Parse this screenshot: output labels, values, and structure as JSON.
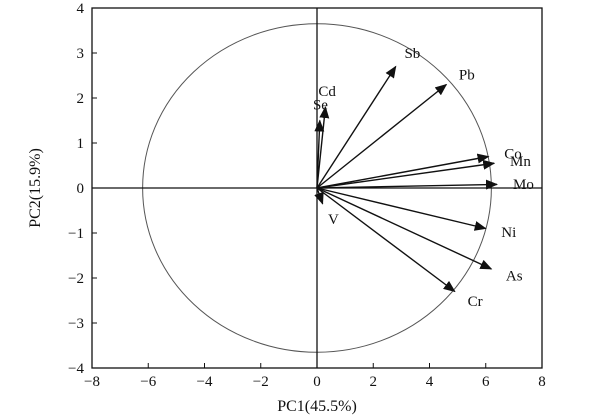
{
  "chart_data": {
    "type": "scatter",
    "subtype": "pca-biplot",
    "title": "",
    "xlabel": "PC1(45.5%)",
    "ylabel": "PC2(15.9%)",
    "xlim": [
      -8,
      8
    ],
    "ylim": [
      -4,
      4
    ],
    "xticks": [
      -8,
      -6,
      -4,
      -2,
      0,
      2,
      4,
      6,
      8
    ],
    "yticks": [
      -4,
      -3,
      -2,
      -1,
      0,
      1,
      2,
      3,
      4
    ],
    "xtick_labels": [
      "−8",
      "−6",
      "−4",
      "−2",
      "0",
      "2",
      "4",
      "6",
      "8"
    ],
    "ytick_labels": [
      "−4",
      "−3",
      "−2",
      "−1",
      "0",
      "1",
      "2",
      "3",
      "4"
    ],
    "grid": false,
    "circle": {
      "center": [
        0,
        0
      ],
      "radius_x": 6.2,
      "radius_y": 3.65
    },
    "vectors": [
      {
        "label": "Se",
        "x": 0.1,
        "y": 1.5
      },
      {
        "label": "Cd",
        "x": 0.3,
        "y": 1.8
      },
      {
        "label": "Sb",
        "x": 2.8,
        "y": 2.7
      },
      {
        "label": "Pb",
        "x": 4.6,
        "y": 2.3
      },
      {
        "label": "Co",
        "x": 6.1,
        "y": 0.7
      },
      {
        "label": "Mn",
        "x": 6.3,
        "y": 0.55
      },
      {
        "label": "Mo",
        "x": 6.4,
        "y": 0.08
      },
      {
        "label": "V",
        "x": 0.2,
        "y": -0.35
      },
      {
        "label": "Ni",
        "x": 6.0,
        "y": -0.9
      },
      {
        "label": "As",
        "x": 6.2,
        "y": -1.8
      },
      {
        "label": "Cr",
        "x": 4.9,
        "y": -2.3
      }
    ]
  }
}
